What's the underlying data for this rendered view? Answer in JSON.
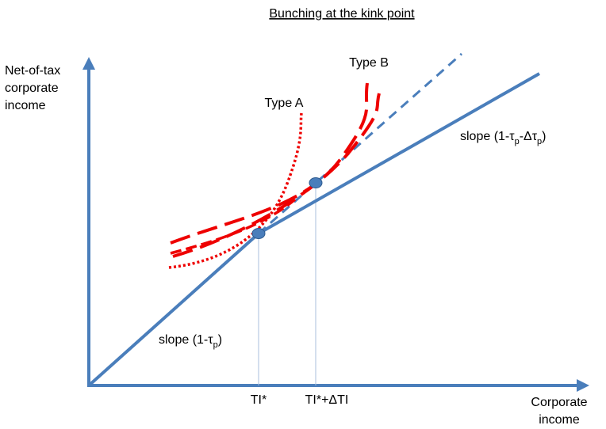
{
  "title": "Bunching at the kink point",
  "y_axis_label": [
    "Net-of-tax",
    "corporate",
    "income"
  ],
  "x_axis_label": [
    "Corporate",
    "income"
  ],
  "curve_labels": {
    "type_a": "Type A",
    "type_b": "Type B"
  },
  "slope_upper": [
    "slope (1-τ",
    "p",
    "-Δτ",
    "p",
    ")"
  ],
  "slope_lower": [
    "slope (1-τ",
    "p",
    ")"
  ],
  "x_ticks": [
    "TI*",
    "TI*+ΔTI"
  ]
}
